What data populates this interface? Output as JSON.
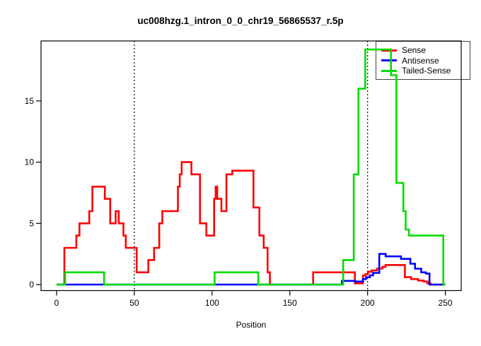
{
  "title": "uc008hzg.1_intron_0_0_chr19_56865537_r.5p",
  "legend": {
    "items": [
      {
        "label": "Sense",
        "color": "#FF0000"
      },
      {
        "label": "Antisense",
        "color": "#0000FF"
      },
      {
        "label": "Tailed-Sense",
        "color": "#00DD00"
      }
    ]
  },
  "chart_data": {
    "type": "line",
    "step": true,
    "title": "uc008hzg.1_intron_0_0_chr19_56865537_r.5p",
    "xlabel": "Position",
    "ylabel": "",
    "xlim": [
      -10,
      260
    ],
    "ylim": [
      -0.5,
      20
    ],
    "xticks": [
      0,
      50,
      100,
      150,
      200,
      250
    ],
    "yticks": [
      0,
      5,
      10,
      15
    ],
    "vlines": [
      50,
      200
    ],
    "grid": false,
    "legend_position": "topright",
    "axis_color": "#000000",
    "series": [
      {
        "name": "Sense",
        "color": "#FF0000",
        "points": [
          [
            0,
            0
          ],
          [
            5,
            3
          ],
          [
            12.7,
            4
          ],
          [
            14.7,
            5
          ],
          [
            21,
            6
          ],
          [
            23,
            8
          ],
          [
            31,
            7
          ],
          [
            34.5,
            5
          ],
          [
            38,
            6
          ],
          [
            40,
            5
          ],
          [
            43,
            4
          ],
          [
            44.5,
            3
          ],
          [
            51.5,
            1
          ],
          [
            59,
            2
          ],
          [
            62.7,
            3
          ],
          [
            66,
            5
          ],
          [
            68,
            6
          ],
          [
            78,
            8
          ],
          [
            79.2,
            9
          ],
          [
            80.4,
            10
          ],
          [
            86.7,
            9
          ],
          [
            92.2,
            5
          ],
          [
            96.3,
            4
          ],
          [
            101.3,
            7
          ],
          [
            102.3,
            8
          ],
          [
            103.3,
            7
          ],
          [
            106,
            6
          ],
          [
            109.2,
            9
          ],
          [
            113,
            9.3
          ],
          [
            126.6,
            6.3
          ],
          [
            130.4,
            4
          ],
          [
            133.2,
            3
          ],
          [
            135.7,
            1
          ],
          [
            137.2,
            0
          ],
          [
            165,
            1
          ],
          [
            191.8,
            0.1
          ],
          [
            197,
            0.75
          ],
          [
            198.6,
            0.85
          ],
          [
            200.2,
            1.05
          ],
          [
            202.5,
            1.15
          ],
          [
            206,
            1.3
          ],
          [
            209.5,
            1.45
          ],
          [
            211.5,
            1.6
          ],
          [
            224,
            0.6
          ],
          [
            228,
            0.45
          ],
          [
            232.5,
            0.33
          ],
          [
            236,
            0.25
          ],
          [
            238.5,
            0.1
          ],
          [
            240.5,
            0
          ],
          [
            250,
            0
          ]
        ]
      },
      {
        "name": "Antisense",
        "color": "#0000FF",
        "points": [
          [
            0,
            0
          ],
          [
            183.5,
            0.3
          ],
          [
            192,
            0.25
          ],
          [
            197,
            0.45
          ],
          [
            199,
            0.6
          ],
          [
            201.5,
            0.75
          ],
          [
            203.5,
            0.95
          ],
          [
            207.5,
            2.5
          ],
          [
            211.6,
            2.3
          ],
          [
            221.5,
            2.1
          ],
          [
            227.5,
            1.7
          ],
          [
            230.5,
            1.3
          ],
          [
            234.5,
            1.0
          ],
          [
            237.5,
            0.9
          ],
          [
            239.8,
            0
          ],
          [
            250,
            0
          ]
        ]
      },
      {
        "name": "Tailed-Sense",
        "color": "#00DD00",
        "points": [
          [
            0,
            0
          ],
          [
            5.5,
            1
          ],
          [
            30.5,
            0
          ],
          [
            101.6,
            1
          ],
          [
            129.7,
            0
          ],
          [
            184.3,
            2
          ],
          [
            191.1,
            9
          ],
          [
            194.1,
            16
          ],
          [
            198.5,
            19.2
          ],
          [
            215,
            17.1
          ],
          [
            218.5,
            8.3
          ],
          [
            223,
            6
          ],
          [
            224.5,
            4.5
          ],
          [
            226.6,
            4
          ],
          [
            248.7,
            0
          ],
          [
            250,
            0
          ]
        ]
      }
    ]
  }
}
